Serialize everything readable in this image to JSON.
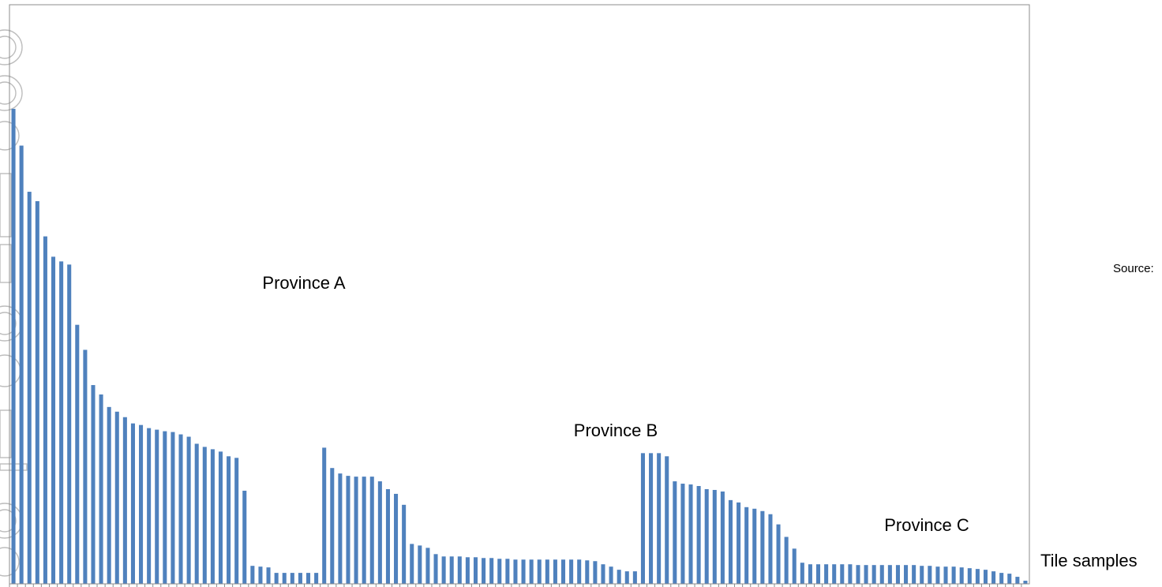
{
  "chart_data": {
    "type": "bar",
    "color": "#4F81BD",
    "ylim": [
      0,
      740
    ],
    "grid": false,
    "legend": "none",
    "xlabel": "Tile samples",
    "source_label": "Source:",
    "annotations": [
      {
        "text": "Province A",
        "at_index": 35
      },
      {
        "text": "Province B",
        "at_index": 72
      },
      {
        "text": "Province C",
        "at_index": 109
      }
    ],
    "values": [
      607,
      560,
      501,
      489,
      444,
      418,
      412,
      408,
      331,
      299,
      254,
      242,
      226,
      220,
      213,
      205,
      203,
      199,
      197,
      195,
      194,
      191,
      188,
      179,
      175,
      172,
      169,
      163,
      161,
      119,
      23,
      22,
      21,
      14,
      14,
      14,
      14,
      14,
      14,
      174,
      148,
      141,
      138,
      137,
      137,
      137,
      131,
      121,
      115,
      101,
      51,
      49,
      46,
      38,
      35,
      35,
      35,
      34,
      34,
      33,
      33,
      32,
      32,
      31,
      31,
      31,
      31,
      31,
      31,
      31,
      31,
      31,
      30,
      29,
      25,
      22,
      18,
      16,
      16,
      167,
      167,
      167,
      163,
      131,
      128,
      127,
      125,
      121,
      120,
      118,
      107,
      104,
      98,
      96,
      93,
      89,
      76,
      60,
      45,
      27,
      25,
      25,
      25,
      25,
      25,
      25,
      24,
      24,
      24,
      24,
      24,
      24,
      24,
      24,
      23,
      23,
      22,
      22,
      22,
      21,
      20,
      19,
      18,
      16,
      14,
      13,
      9,
      4
    ]
  }
}
